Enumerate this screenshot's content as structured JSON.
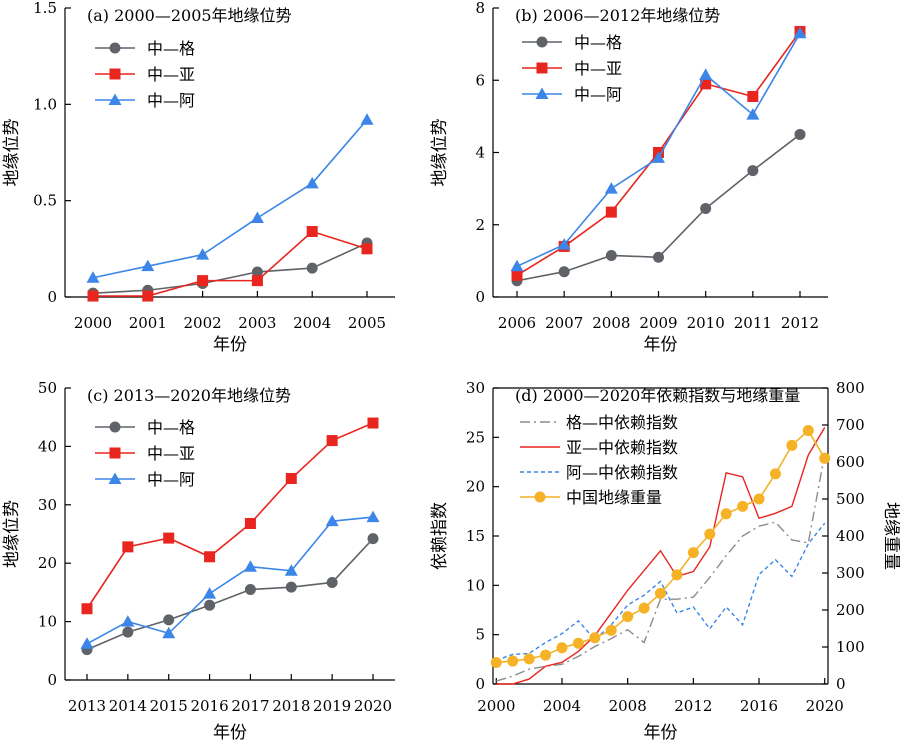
{
  "chart_data": [
    {
      "id": "a",
      "type": "line",
      "title": "(a) 2000—2005年地缘位势",
      "xlabel": "年份",
      "ylabel": "地缘位势",
      "x": [
        "2000",
        "2001",
        "2002",
        "2003",
        "2004",
        "2005"
      ],
      "ylim": [
        0,
        1.5
      ],
      "yticks": [
        "0",
        "0.5",
        "1.0",
        "1.5"
      ],
      "ytick_values": [
        0,
        0.5,
        1.0,
        1.5
      ],
      "series": [
        {
          "name": "中—格",
          "color": "#5f6368",
          "marker": "circle",
          "values": [
            0.02,
            0.035,
            0.07,
            0.13,
            0.15,
            0.28
          ]
        },
        {
          "name": "中—亚",
          "color": "#e8251f",
          "marker": "square",
          "values": [
            0.005,
            0.005,
            0.085,
            0.085,
            0.34,
            0.25
          ]
        },
        {
          "name": "中—阿",
          "color": "#3b86e8",
          "marker": "triangle",
          "values": [
            0.1,
            0.16,
            0.22,
            0.41,
            0.59,
            0.92
          ]
        }
      ]
    },
    {
      "id": "b",
      "type": "line",
      "title": "(b) 2006—2012年地缘位势",
      "xlabel": "年份",
      "ylabel": "地缘位势",
      "x": [
        "2006",
        "2007",
        "2008",
        "2009",
        "2010",
        "2011",
        "2012"
      ],
      "ylim": [
        0,
        8
      ],
      "yticks": [
        "0",
        "2",
        "4",
        "6",
        "8"
      ],
      "ytick_values": [
        0,
        2,
        4,
        6,
        8
      ],
      "series": [
        {
          "name": "中—格",
          "color": "#5f6368",
          "marker": "circle",
          "values": [
            0.45,
            0.7,
            1.15,
            1.1,
            2.45,
            3.5,
            4.5
          ]
        },
        {
          "name": "中—亚",
          "color": "#e8251f",
          "marker": "square",
          "values": [
            0.6,
            1.4,
            2.35,
            4.0,
            5.9,
            5.55,
            7.35
          ]
        },
        {
          "name": "中—阿",
          "color": "#3b86e8",
          "marker": "triangle",
          "values": [
            0.85,
            1.45,
            3.0,
            3.85,
            6.15,
            5.05,
            7.3
          ]
        }
      ]
    },
    {
      "id": "c",
      "type": "line",
      "title": "(c) 2013—2020年地缘位势",
      "xlabel": "年份",
      "ylabel": "地缘位势",
      "x": [
        "2013",
        "2014",
        "2015",
        "2016",
        "2017",
        "2018",
        "2019",
        "2020"
      ],
      "ylim": [
        0,
        50
      ],
      "yticks": [
        "0",
        "10",
        "20",
        "30",
        "40",
        "50"
      ],
      "ytick_values": [
        0,
        10,
        20,
        30,
        40,
        50
      ],
      "series": [
        {
          "name": "中—格",
          "color": "#5f6368",
          "marker": "circle",
          "values": [
            5.2,
            8.2,
            10.3,
            12.8,
            15.5,
            15.9,
            16.7,
            24.2
          ]
        },
        {
          "name": "中—亚",
          "color": "#e8251f",
          "marker": "square",
          "values": [
            12.2,
            22.8,
            24.3,
            21.1,
            26.8,
            34.5,
            41.0,
            44.0
          ]
        },
        {
          "name": "中—阿",
          "color": "#3b86e8",
          "marker": "triangle",
          "values": [
            6.2,
            10.0,
            8.0,
            14.8,
            19.4,
            18.7,
            27.2,
            27.9
          ]
        }
      ]
    },
    {
      "id": "d",
      "type": "line",
      "title": "(d) 2000—2020年依赖指数与地缘重量",
      "xlabel": "年份",
      "ylabel": "依赖指数",
      "ylabel_right": "地缘重量",
      "xlim": [
        1999.8,
        2020.2
      ],
      "xticks": [
        "2000",
        "2004",
        "2008",
        "2012",
        "2016",
        "2020"
      ],
      "xtick_values": [
        2000,
        2004,
        2008,
        2012,
        2016,
        2020
      ],
      "ylim": [
        0,
        30
      ],
      "yticks": [
        "0",
        "5",
        "10",
        "15",
        "20",
        "25",
        "30"
      ],
      "ytick_values": [
        0,
        5,
        10,
        15,
        20,
        25,
        30
      ],
      "ylim_right": [
        0,
        800
      ],
      "yticks_right": [
        "0",
        "100",
        "200",
        "300",
        "400",
        "500",
        "600",
        "700",
        "800"
      ],
      "ytick_values_right": [
        0,
        100,
        200,
        300,
        400,
        500,
        600,
        700,
        800
      ],
      "series": [
        {
          "name": "格—中依赖指数",
          "color": "#8c8c8c",
          "style": "dashdot",
          "axis": "left",
          "x": [
            2000,
            2001,
            2002,
            2003,
            2004,
            2005,
            2006,
            2007,
            2008,
            2009,
            2010,
            2011,
            2012,
            2013,
            2014,
            2015,
            2016,
            2017,
            2018,
            2019,
            2020
          ],
          "values": [
            0.3,
            0.8,
            1.5,
            1.8,
            2.0,
            2.8,
            3.8,
            4.6,
            5.5,
            4.2,
            8.6,
            8.6,
            8.8,
            10.8,
            13.0,
            15.0,
            16.0,
            16.4,
            14.6,
            14.3,
            23.3
          ]
        },
        {
          "name": "亚—中依赖指数",
          "color": "#e8251f",
          "style": "solid",
          "axis": "left",
          "x": [
            2000,
            2001,
            2002,
            2003,
            2004,
            2005,
            2006,
            2007,
            2008,
            2009,
            2010,
            2011,
            2012,
            2013,
            2014,
            2015,
            2016,
            2017,
            2018,
            2019,
            2020
          ],
          "values": [
            0,
            0,
            0.5,
            1.8,
            2.2,
            3.3,
            4.9,
            7.2,
            9.5,
            11.5,
            13.5,
            10.9,
            11.4,
            13.9,
            21.4,
            21.0,
            16.8,
            17.3,
            18.0,
            23.2,
            26.0
          ]
        },
        {
          "name": "阿—中依赖指数",
          "color": "#3b86e8",
          "style": "dashed",
          "axis": "left",
          "x": [
            2000,
            2001,
            2002,
            2003,
            2004,
            2005,
            2006,
            2007,
            2008,
            2009,
            2010,
            2011,
            2012,
            2013,
            2014,
            2015,
            2016,
            2017,
            2018,
            2019,
            2020
          ],
          "values": [
            2.4,
            3.0,
            3.1,
            4.2,
            5.1,
            6.4,
            4.5,
            6.0,
            8.0,
            9.0,
            10.4,
            7.2,
            7.8,
            5.6,
            7.8,
            6.0,
            11.1,
            12.6,
            10.9,
            14.2,
            16.3
          ]
        },
        {
          "name": "中国地缘重量",
          "color": "#f5b227",
          "style": "solid",
          "marker": "circle",
          "axis": "right",
          "x": [
            2000,
            2001,
            2002,
            2003,
            2004,
            2005,
            2006,
            2007,
            2008,
            2009,
            2010,
            2011,
            2012,
            2013,
            2014,
            2015,
            2016,
            2017,
            2018,
            2019,
            2020
          ],
          "values": [
            58,
            62,
            68,
            78,
            98,
            110,
            125,
            145,
            182,
            205,
            245,
            295,
            355,
            405,
            460,
            480,
            500,
            568,
            645,
            685,
            610
          ]
        }
      ]
    }
  ]
}
